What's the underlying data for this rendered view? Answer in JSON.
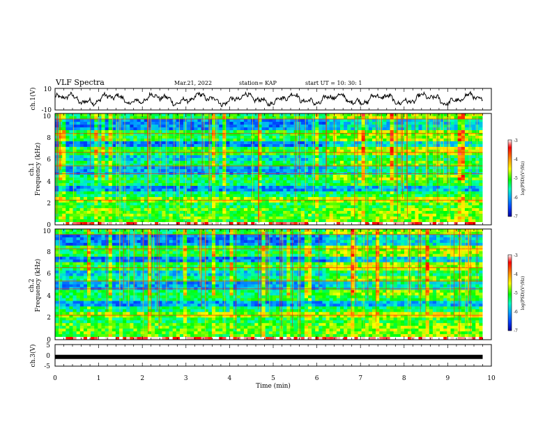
{
  "header": {
    "title": "VLF Spectra",
    "date": "Mar.21, 2022",
    "station": "station= KAP",
    "start": "start  UT =   10: 30: 1"
  },
  "colorbar": {
    "label": "log(PSD)(V²/Hz)",
    "ticks": [
      "-3",
      "-4",
      "-5",
      "-6",
      "-7"
    ],
    "stops": [
      "#ffffff",
      "#ff0000",
      "#ffa000",
      "#ffff00",
      "#00ff00",
      "#00ffc0",
      "#00b0ff",
      "#0050ff",
      "#0000a0"
    ]
  },
  "chart_data": [
    {
      "type": "line",
      "name": "ch1-waveform",
      "ylabel": "ch.1(V)",
      "ylim": [
        -10,
        10
      ],
      "yticks": [
        "10",
        "-10"
      ],
      "xlim": [
        0,
        10
      ],
      "description_values": "waveform oscillating roughly between -6 and +6 V over 0-9.8 min"
    },
    {
      "type": "heatmap",
      "name": "ch1-spectrogram",
      "ylabel": "ch.1",
      "ylabel2": "Frequency (kHz)",
      "ylim": [
        0,
        10
      ],
      "yticks": [
        "0",
        "2",
        "4",
        "6",
        "8",
        "10"
      ],
      "xlim": [
        0,
        10
      ],
      "data_end_min": 9.8,
      "zlim": [
        -7,
        -3
      ]
    },
    {
      "type": "heatmap",
      "name": "ch2-spectrogram",
      "ylabel": "ch.2",
      "ylabel2": "Frequency (kHz)",
      "ylim": [
        0,
        10
      ],
      "yticks": [
        "0",
        "2",
        "4",
        "6",
        "8",
        "10"
      ],
      "xlim": [
        0,
        10
      ],
      "data_end_min": 9.8,
      "zlim": [
        -7,
        -3
      ]
    },
    {
      "type": "line",
      "name": "ch3-signal",
      "ylabel": "ch.3(V)",
      "ylim": [
        -5,
        5
      ],
      "yticks": [
        "5",
        "0",
        "-5"
      ],
      "xlim": [
        0,
        10
      ],
      "values_constant": -0.7
    }
  ],
  "xaxis": {
    "label": "Time (min)",
    "ticks": [
      "0",
      "1",
      "2",
      "3",
      "4",
      "5",
      "6",
      "7",
      "8",
      "9",
      "10"
    ]
  }
}
